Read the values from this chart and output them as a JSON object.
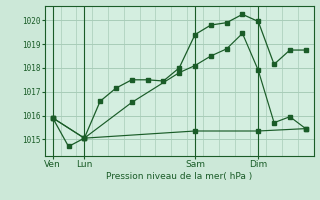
{
  "bg_color": "#cce8d8",
  "plot_bg_color": "#d4eee0",
  "grid_color": "#a8ccb8",
  "line_color": "#1a5c28",
  "title": "Pression niveau de la mer( hPa )",
  "ylabel_ticks": [
    1015,
    1016,
    1017,
    1018,
    1019,
    1020
  ],
  "ylim": [
    1014.3,
    1020.6
  ],
  "xtick_labels": [
    "Ven",
    "Lun",
    "Sam",
    "Dim"
  ],
  "xtick_positions": [
    0,
    2,
    9,
    13
  ],
  "xlim": [
    -0.5,
    16.5
  ],
  "s1x": [
    0,
    1,
    2,
    3,
    4,
    5,
    6,
    7,
    8,
    9,
    10,
    11,
    12,
    13,
    14,
    15,
    16
  ],
  "s1y": [
    1015.9,
    1014.7,
    1015.05,
    1016.6,
    1017.15,
    1017.5,
    1017.5,
    1017.45,
    1018.0,
    1019.4,
    1019.8,
    1019.9,
    1020.25,
    1019.95,
    1018.15,
    1018.75,
    1018.75
  ],
  "s2x": [
    0,
    2,
    5,
    8,
    9,
    10,
    11,
    12,
    13,
    14,
    15,
    16
  ],
  "s2y": [
    1015.9,
    1015.05,
    1016.55,
    1017.8,
    1018.1,
    1018.5,
    1018.8,
    1019.45,
    1017.9,
    1015.7,
    1015.95,
    1015.45
  ],
  "s3x": [
    0,
    2,
    9,
    13,
    16
  ],
  "s3y": [
    1015.9,
    1015.05,
    1015.35,
    1015.35,
    1015.45
  ]
}
